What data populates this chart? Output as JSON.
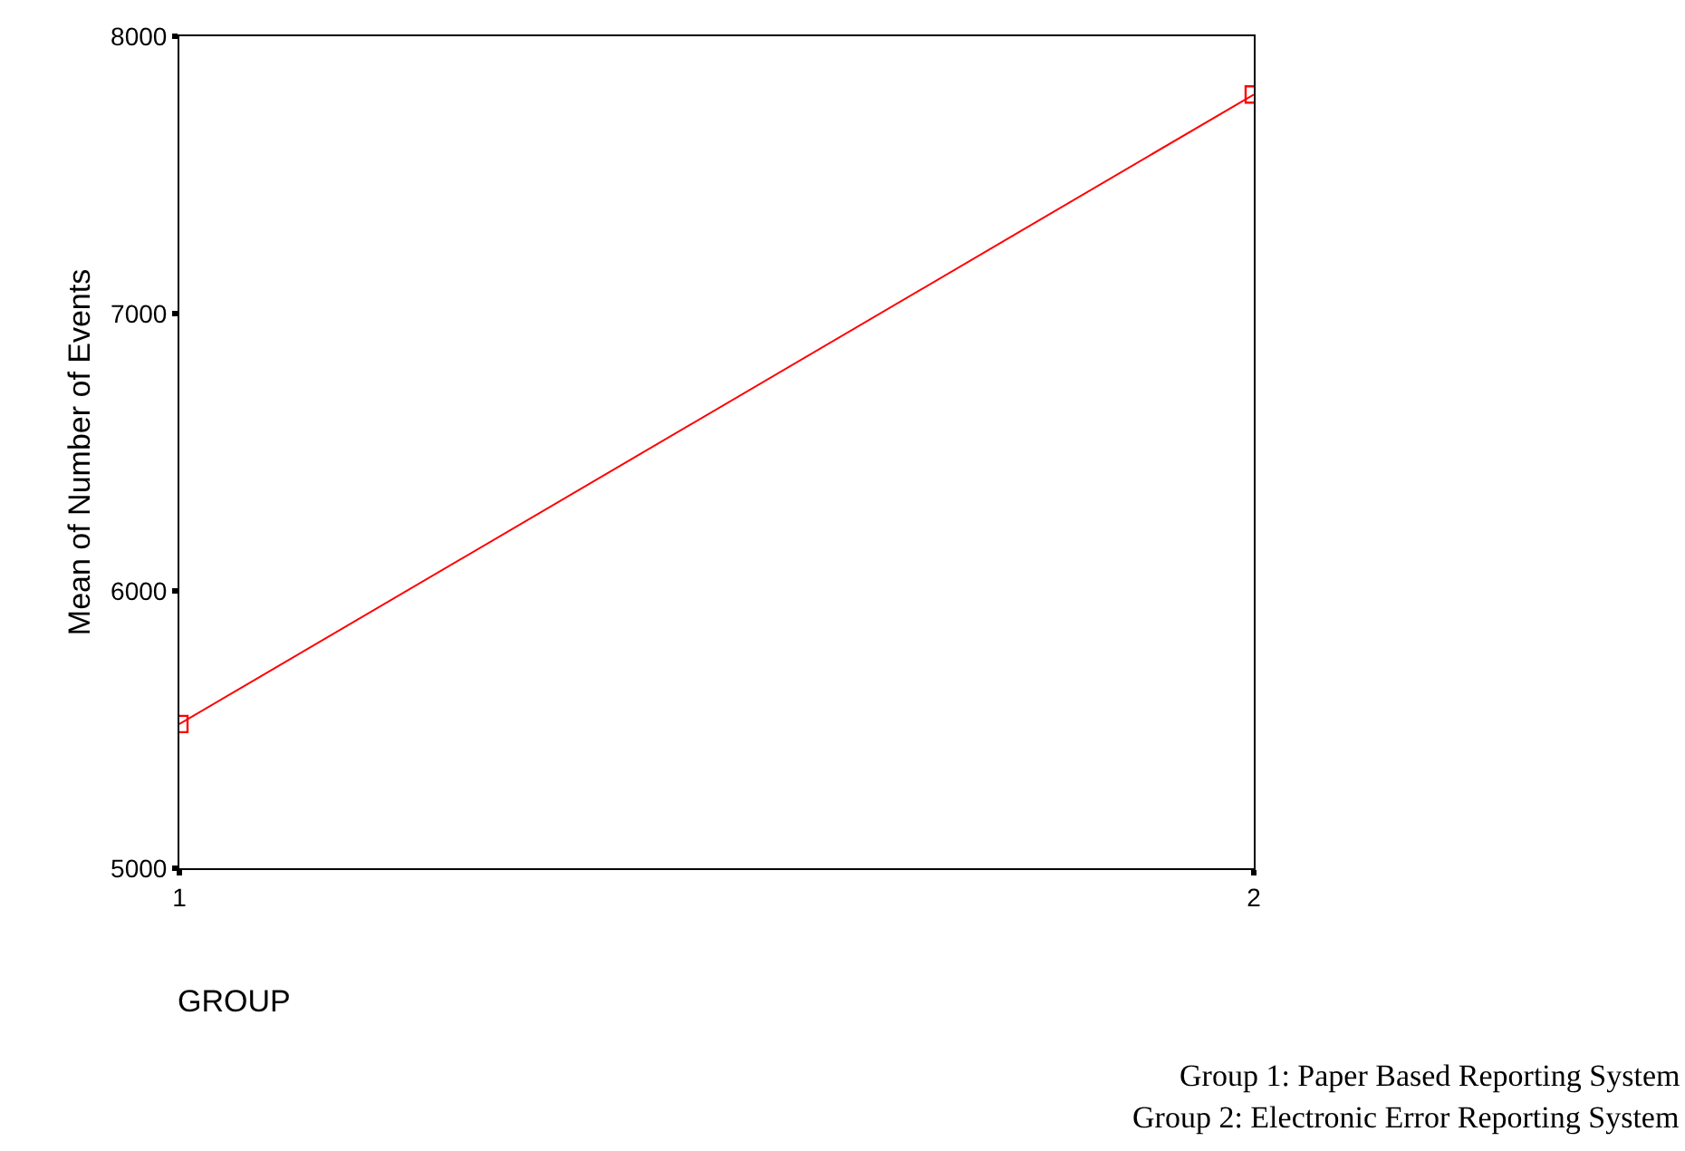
{
  "chart_data": {
    "type": "line",
    "x": [
      1,
      2
    ],
    "xlim": [
      1,
      2
    ],
    "xticks": [
      1,
      2
    ],
    "series": [
      {
        "color": "#ff0000",
        "values": [
          5520,
          7790
        ]
      }
    ],
    "ylim": [
      5000,
      8000
    ],
    "yticks": [
      5000,
      6000,
      7000,
      8000
    ],
    "xlabel": "GROUP",
    "ylabel": "Mean of Number of Events",
    "marker": "square",
    "annotations": [
      "Group 1: Paper Based Reporting System",
      "Group 2: Electronic Error Reporting System"
    ]
  }
}
